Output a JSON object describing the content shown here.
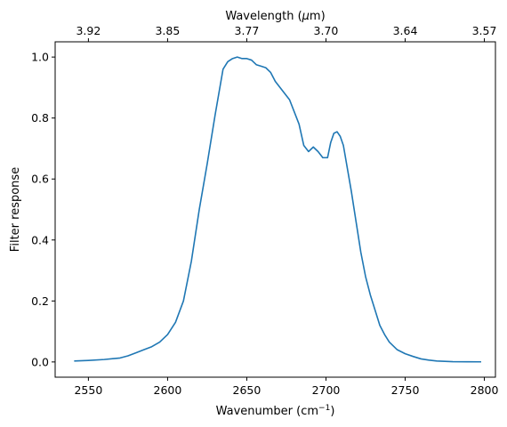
{
  "chart_data": {
    "type": "line",
    "xlabel": "Wavenumber (cm",
    "xlabel_sup": "−1",
    "xlabel_end": ")",
    "ylabel": "Filter response",
    "top_label": "Wavelength (",
    "top_label_mu": "μ",
    "top_label_end": "m)",
    "xlim": [
      2529,
      2807
    ],
    "ylim": [
      -0.05,
      1.05
    ],
    "x_ticks": [
      2550,
      2600,
      2650,
      2700,
      2750,
      2800
    ],
    "y_ticks": [
      0.0,
      0.2,
      0.4,
      0.6,
      0.8,
      1.0
    ],
    "top_ticks": [
      "3.92",
      "3.85",
      "3.77",
      "3.70",
      "3.64",
      "3.57"
    ],
    "grid": false,
    "color": "#1f77b4",
    "series": [
      {
        "x": [
          2541,
          2550,
          2560,
          2570,
          2575,
          2580,
          2585,
          2590,
          2595,
          2600,
          2605,
          2610,
          2615,
          2620,
          2625,
          2630,
          2635,
          2638,
          2641,
          2644,
          2647,
          2650,
          2653,
          2656,
          2659,
          2662,
          2665,
          2668,
          2671,
          2674,
          2677,
          2680,
          2683,
          2686,
          2689,
          2692,
          2695,
          2698,
          2701,
          2703,
          2705,
          2707,
          2709,
          2711,
          2713,
          2716,
          2719,
          2722,
          2725,
          2728,
          2731,
          2734,
          2737,
          2740,
          2745,
          2750,
          2755,
          2760,
          2765,
          2770,
          2775,
          2780,
          2790,
          2798
        ],
        "y": [
          0.003,
          0.005,
          0.008,
          0.013,
          0.02,
          0.03,
          0.04,
          0.05,
          0.065,
          0.09,
          0.13,
          0.2,
          0.33,
          0.5,
          0.65,
          0.81,
          0.96,
          0.985,
          0.995,
          1.0,
          0.995,
          0.995,
          0.99,
          0.975,
          0.97,
          0.965,
          0.95,
          0.92,
          0.9,
          0.88,
          0.86,
          0.82,
          0.78,
          0.71,
          0.69,
          0.705,
          0.69,
          0.67,
          0.67,
          0.72,
          0.75,
          0.755,
          0.74,
          0.71,
          0.65,
          0.56,
          0.46,
          0.36,
          0.28,
          0.22,
          0.17,
          0.12,
          0.09,
          0.065,
          0.04,
          0.027,
          0.018,
          0.01,
          0.006,
          0.003,
          0.002,
          0.001,
          0.0005,
          0.0003
        ]
      }
    ]
  }
}
